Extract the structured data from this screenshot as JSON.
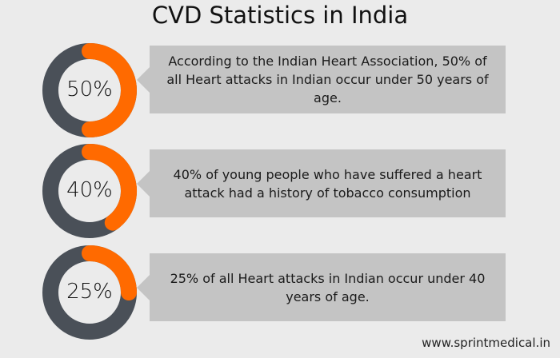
{
  "title": "CVD Statistics in India",
  "colors": {
    "ring": "#4a5058",
    "accent": "#ff6a00",
    "box": "#c4c4c4",
    "background": "#ebebeb"
  },
  "stats": [
    {
      "percent": 50,
      "label": "50%",
      "text": "According to the Indian Heart Association, 50% of all Heart attacks in Indian occur under 50 years of age."
    },
    {
      "percent": 40,
      "label": "40%",
      "text": "40% of young people who have suffered a heart attack had a history of tobacco consumption"
    },
    {
      "percent": 25,
      "label": "25%",
      "text": "25% of all Heart attacks in Indian occur under 40 years of age."
    }
  ],
  "footer": "www.sprintmedical.in"
}
